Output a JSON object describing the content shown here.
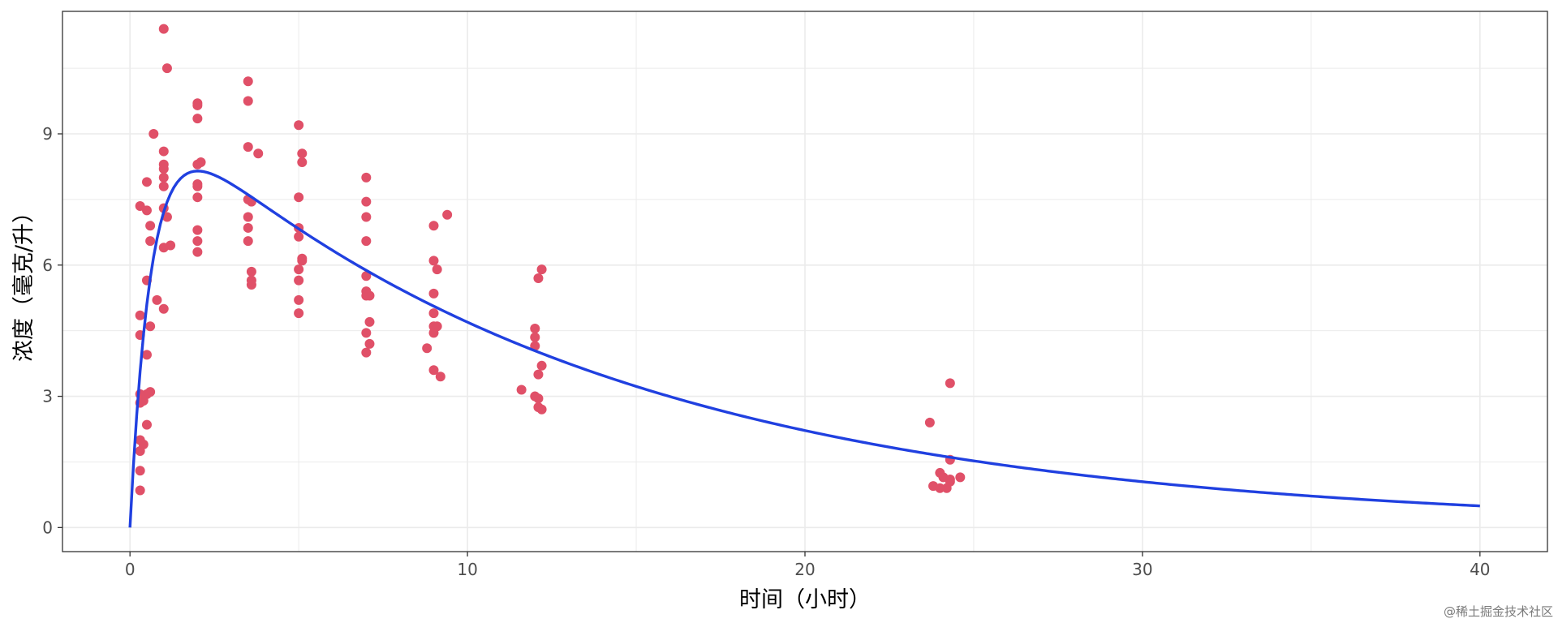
{
  "chart_data": {
    "type": "scatter",
    "title": "",
    "xlabel": "时间（小时）",
    "ylabel": "浓度（毫克/升）",
    "xlim": [
      -2,
      42
    ],
    "ylim": [
      -0.55,
      11.8
    ],
    "xticks": [
      0,
      10,
      20,
      30,
      40
    ],
    "yticks": [
      0,
      3,
      6,
      9
    ],
    "grid": true,
    "legend": "none",
    "colors": {
      "points": "#e05068",
      "curve": "#2040e0",
      "grid": "#ebebeb",
      "border": "#333333"
    },
    "series": [
      {
        "type": "scatter",
        "points": [
          [
            1.0,
            11.4
          ],
          [
            1.1,
            10.5
          ],
          [
            0.7,
            9.0
          ],
          [
            1.0,
            8.6
          ],
          [
            1.0,
            8.3
          ],
          [
            1.0,
            8.2
          ],
          [
            1.0,
            8.0
          ],
          [
            0.5,
            7.9
          ],
          [
            1.0,
            7.8
          ],
          [
            0.3,
            7.35
          ],
          [
            0.5,
            7.25
          ],
          [
            1.0,
            7.3
          ],
          [
            1.1,
            7.1
          ],
          [
            0.6,
            6.9
          ],
          [
            0.6,
            6.55
          ],
          [
            1.2,
            6.45
          ],
          [
            1.0,
            6.4
          ],
          [
            0.5,
            5.65
          ],
          [
            0.8,
            5.2
          ],
          [
            1.0,
            5.0
          ],
          [
            0.3,
            4.85
          ],
          [
            0.6,
            4.6
          ],
          [
            0.3,
            4.4
          ],
          [
            0.5,
            3.95
          ],
          [
            0.6,
            3.1
          ],
          [
            0.5,
            3.05
          ],
          [
            0.3,
            3.05
          ],
          [
            0.4,
            2.9
          ],
          [
            0.3,
            2.85
          ],
          [
            0.5,
            2.35
          ],
          [
            0.3,
            2.0
          ],
          [
            0.4,
            1.9
          ],
          [
            0.3,
            1.75
          ],
          [
            0.3,
            1.3
          ],
          [
            0.3,
            0.85
          ],
          [
            2.0,
            9.7
          ],
          [
            2.0,
            9.65
          ],
          [
            2.0,
            9.35
          ],
          [
            2.1,
            8.35
          ],
          [
            2.0,
            8.3
          ],
          [
            2.0,
            7.85
          ],
          [
            2.0,
            7.8
          ],
          [
            2.0,
            7.55
          ],
          [
            2.0,
            6.8
          ],
          [
            2.0,
            6.55
          ],
          [
            2.0,
            6.3
          ],
          [
            3.5,
            10.2
          ],
          [
            3.5,
            9.75
          ],
          [
            3.5,
            8.7
          ],
          [
            3.8,
            8.55
          ],
          [
            3.5,
            7.5
          ],
          [
            3.6,
            7.45
          ],
          [
            3.5,
            7.1
          ],
          [
            3.5,
            6.85
          ],
          [
            3.5,
            6.55
          ],
          [
            3.6,
            5.85
          ],
          [
            3.6,
            5.65
          ],
          [
            3.6,
            5.55
          ],
          [
            5.0,
            9.2
          ],
          [
            5.1,
            8.55
          ],
          [
            5.1,
            8.35
          ],
          [
            5.0,
            7.55
          ],
          [
            5.0,
            6.85
          ],
          [
            5.0,
            6.65
          ],
          [
            5.1,
            6.15
          ],
          [
            5.1,
            6.1
          ],
          [
            5.0,
            5.9
          ],
          [
            5.0,
            5.65
          ],
          [
            5.0,
            5.2
          ],
          [
            5.0,
            4.9
          ],
          [
            7.0,
            8.0
          ],
          [
            7.0,
            7.45
          ],
          [
            7.0,
            7.1
          ],
          [
            7.0,
            6.55
          ],
          [
            7.0,
            5.75
          ],
          [
            7.0,
            5.4
          ],
          [
            7.0,
            5.3
          ],
          [
            7.1,
            5.3
          ],
          [
            7.1,
            4.7
          ],
          [
            7.0,
            4.45
          ],
          [
            7.1,
            4.2
          ],
          [
            7.0,
            4.0
          ],
          [
            9.0,
            6.9
          ],
          [
            9.4,
            7.15
          ],
          [
            9.0,
            6.1
          ],
          [
            9.1,
            5.9
          ],
          [
            9.0,
            5.35
          ],
          [
            9.0,
            4.9
          ],
          [
            9.1,
            4.6
          ],
          [
            9.0,
            4.6
          ],
          [
            9.0,
            4.45
          ],
          [
            8.8,
            4.1
          ],
          [
            9.0,
            3.6
          ],
          [
            9.2,
            3.45
          ],
          [
            12.2,
            5.9
          ],
          [
            12.1,
            5.7
          ],
          [
            12.0,
            4.55
          ],
          [
            12.0,
            4.35
          ],
          [
            12.0,
            4.15
          ],
          [
            12.2,
            3.7
          ],
          [
            12.1,
            3.5
          ],
          [
            11.6,
            3.15
          ],
          [
            12.0,
            3.0
          ],
          [
            12.1,
            2.95
          ],
          [
            12.1,
            2.75
          ],
          [
            12.2,
            2.7
          ],
          [
            23.7,
            2.4
          ],
          [
            24.3,
            3.3
          ],
          [
            24.3,
            1.55
          ],
          [
            24.0,
            1.25
          ],
          [
            24.1,
            1.15
          ],
          [
            24.3,
            1.1
          ],
          [
            24.6,
            1.15
          ],
          [
            24.3,
            1.05
          ],
          [
            23.8,
            0.95
          ],
          [
            24.0,
            0.9
          ],
          [
            24.2,
            0.9
          ]
        ]
      },
      {
        "type": "line",
        "ka": 1.6,
        "ke": 0.075,
        "peak": 8.15
      }
    ]
  },
  "watermark": "@稀土掘金技术社区"
}
